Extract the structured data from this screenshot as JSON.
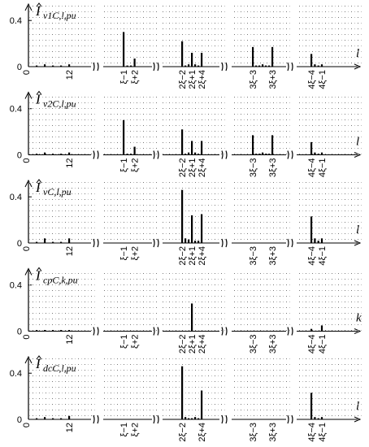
{
  "chart_data": [
    {
      "type": "bar",
      "ylabel_symbol": "I",
      "ylabel_subscript": "v1C,l,pu",
      "xlabel": "l",
      "x_origin_label": "0",
      "color": "#000000",
      "ylim": [
        0,
        0.5
      ],
      "yticks": [
        0,
        0.4
      ],
      "segments": [
        {
          "categories": [
            null,
            null,
            null,
            null,
            "12"
          ],
          "values": [
            0.01,
            0.02,
            0.01,
            0.01,
            0.02
          ]
        },
        {
          "categories": [
            "ξ−1",
            null,
            null,
            "ξ+2"
          ],
          "values": [
            0.3,
            0.01,
            0.01,
            0.07
          ]
        },
        {
          "categories": [
            "2ξ−2",
            null,
            null,
            "2ξ+1",
            null,
            null,
            "2ξ+4"
          ],
          "values": [
            0.22,
            0.01,
            0.02,
            0.12,
            0.02,
            0.01,
            0.12
          ]
        },
        {
          "categories": [
            "3ξ−3",
            null,
            null,
            null,
            null,
            null,
            "3ξ+3"
          ],
          "values": [
            0.17,
            0.01,
            0.01,
            0.02,
            0.01,
            0.01,
            0.17
          ]
        },
        {
          "categories": [
            "4ξ−4",
            null,
            null,
            "4ξ−1"
          ],
          "values": [
            0.11,
            0.02,
            0.01,
            0.02
          ]
        }
      ]
    },
    {
      "type": "bar",
      "ylabel_symbol": "I",
      "ylabel_subscript": "v2C,l,pu",
      "xlabel": "l",
      "x_origin_label": "0",
      "color": "#000000",
      "ylim": [
        0,
        0.5
      ],
      "yticks": [
        0,
        0.4
      ],
      "segments": [
        {
          "categories": [
            null,
            null,
            null,
            null,
            "12"
          ],
          "values": [
            0.01,
            0.02,
            0.01,
            0.01,
            0.02
          ]
        },
        {
          "categories": [
            "ξ−1",
            null,
            null,
            "ξ+2"
          ],
          "values": [
            0.3,
            0.01,
            0.01,
            0.07
          ]
        },
        {
          "categories": [
            "2ξ−2",
            null,
            null,
            "2ξ+1",
            null,
            null,
            "2ξ+4"
          ],
          "values": [
            0.22,
            0.01,
            0.02,
            0.12,
            0.02,
            0.01,
            0.12
          ]
        },
        {
          "categories": [
            "3ξ−3",
            null,
            null,
            null,
            null,
            null,
            "3ξ+3"
          ],
          "values": [
            0.17,
            0.01,
            0.01,
            0.02,
            0.01,
            0.01,
            0.17
          ]
        },
        {
          "categories": [
            "4ξ−4",
            null,
            null,
            "4ξ−1"
          ],
          "values": [
            0.11,
            0.02,
            0.01,
            0.02
          ]
        }
      ]
    },
    {
      "type": "bar",
      "ylabel_symbol": "I",
      "ylabel_subscript": "vC,l,pu",
      "xlabel": "l",
      "x_origin_label": "0",
      "color": "#000000",
      "ylim": [
        0,
        0.5
      ],
      "yticks": [
        0,
        0.4
      ],
      "segments": [
        {
          "categories": [
            null,
            null,
            null,
            null,
            "12"
          ],
          "values": [
            0.01,
            0.04,
            0.01,
            0.01,
            0.04
          ]
        },
        {
          "categories": [
            "ξ−1",
            null,
            null,
            "ξ+2"
          ],
          "values": [
            0,
            0,
            0,
            0
          ]
        },
        {
          "categories": [
            "2ξ−2",
            null,
            null,
            "2ξ+1",
            null,
            null,
            "2ξ+4"
          ],
          "values": [
            0.46,
            0.04,
            0.03,
            0.24,
            0.02,
            0.02,
            0.25
          ]
        },
        {
          "categories": [
            "3ξ−3",
            null,
            null,
            null,
            null,
            null,
            "3ξ+3"
          ],
          "values": [
            0,
            0,
            0,
            0,
            0,
            0,
            0
          ]
        },
        {
          "categories": [
            "4ξ−4",
            null,
            null,
            "4ξ−1"
          ],
          "values": [
            0.23,
            0.04,
            0.02,
            0.04
          ]
        }
      ]
    },
    {
      "type": "bar",
      "ylabel_symbol": "I",
      "ylabel_subscript": "cpC,k,pu",
      "xlabel": "k",
      "x_origin_label": "0",
      "color": "#000000",
      "ylim": [
        0,
        0.5
      ],
      "yticks": [
        0,
        0.4
      ],
      "segments": [
        {
          "categories": [
            null,
            null,
            null,
            null,
            "12"
          ],
          "values": [
            0.01,
            0.01,
            0.01,
            0.01,
            0.01
          ]
        },
        {
          "categories": [
            "ξ−1",
            null,
            null,
            "ξ+2"
          ],
          "values": [
            0,
            0,
            0,
            0
          ]
        },
        {
          "categories": [
            "2ξ−2",
            null,
            null,
            "2ξ+1",
            null,
            null,
            "2ξ+4"
          ],
          "values": [
            0,
            0,
            0,
            0.24,
            0,
            0,
            0
          ]
        },
        {
          "categories": [
            "3ξ−3",
            null,
            null,
            null,
            null,
            null,
            "3ξ+3"
          ],
          "values": [
            0,
            0,
            0,
            0,
            0,
            0,
            0
          ]
        },
        {
          "categories": [
            "4ξ−4",
            null,
            null,
            "4ξ−1"
          ],
          "values": [
            0.02,
            0,
            0,
            0.05
          ]
        }
      ]
    },
    {
      "type": "bar",
      "ylabel_symbol": "I",
      "ylabel_subscript": "dcC,l,pu",
      "xlabel": "l",
      "x_origin_label": "0",
      "color": "#000000",
      "ylim": [
        0,
        0.5
      ],
      "yticks": [
        0,
        0.4
      ],
      "segments": [
        {
          "categories": [
            null,
            null,
            null,
            null,
            "12"
          ],
          "values": [
            0.01,
            0.02,
            0.01,
            0.01,
            0.03
          ]
        },
        {
          "categories": [
            "ξ−1",
            null,
            null,
            "ξ+2"
          ],
          "values": [
            0,
            0,
            0,
            0
          ]
        },
        {
          "categories": [
            "2ξ−2",
            null,
            null,
            null,
            null,
            null,
            "2ξ+4"
          ],
          "values": [
            0.46,
            0.02,
            0.01,
            0.01,
            0.02,
            0.01,
            0.25
          ]
        },
        {
          "categories": [
            "3ξ−3",
            null,
            null,
            null,
            null,
            null,
            "3ξ+3"
          ],
          "values": [
            0,
            0,
            0,
            0,
            0,
            0,
            0
          ]
        },
        {
          "categories": [
            "4ξ−4",
            null,
            null,
            "4ξ−1"
          ],
          "values": [
            0.23,
            0.02,
            0.01,
            0.02
          ]
        }
      ]
    }
  ]
}
